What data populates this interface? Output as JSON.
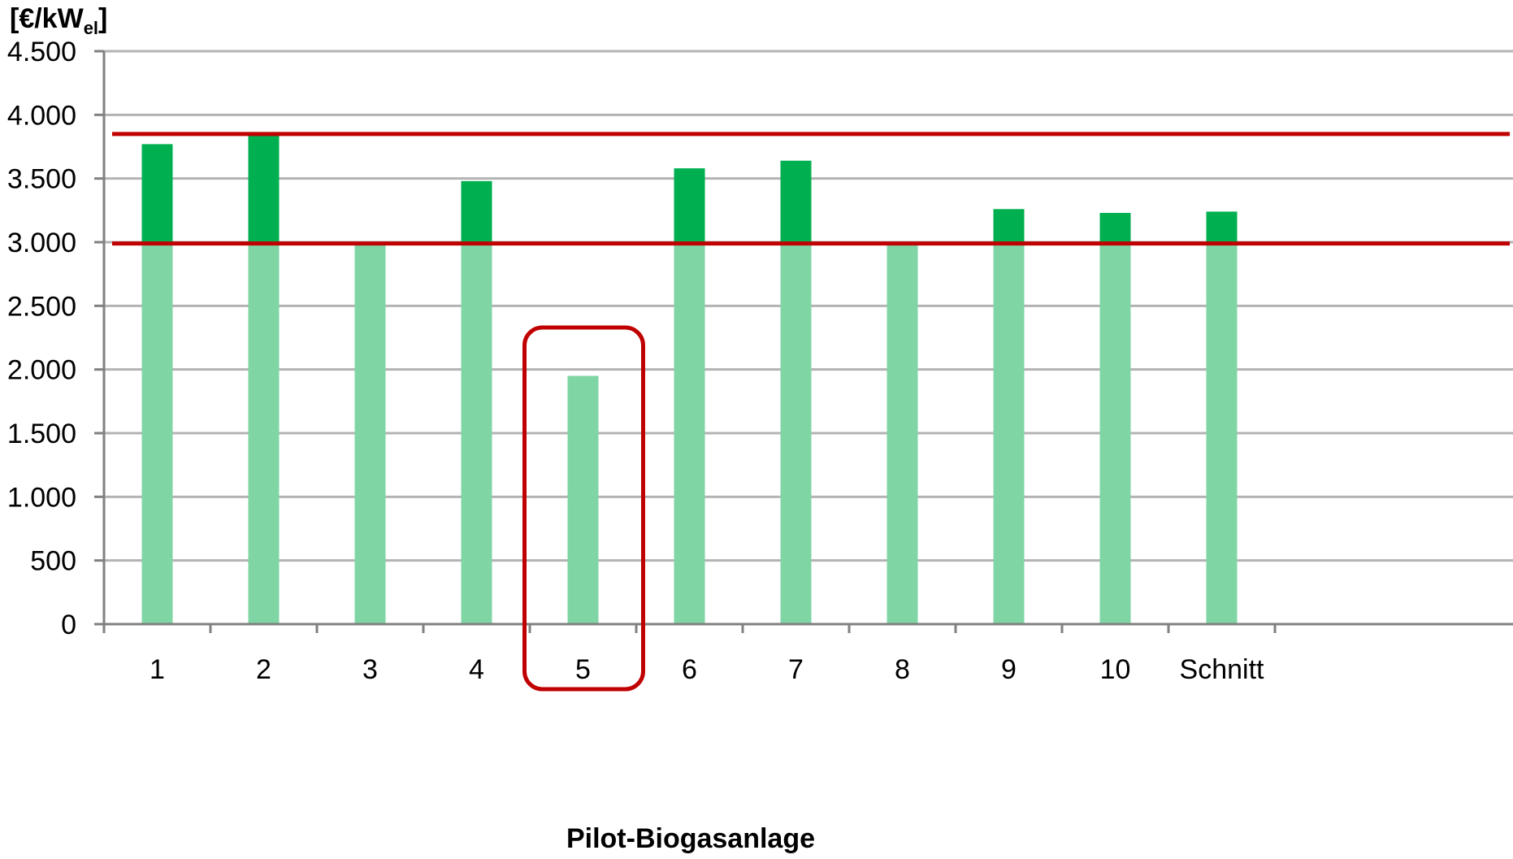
{
  "chart_data": {
    "type": "bar",
    "categories": [
      "1",
      "2",
      "3",
      "4",
      "5",
      "6",
      "7",
      "8",
      "9",
      "10",
      "Schnitt"
    ],
    "series": [
      {
        "values": [
          3000,
          3000,
          3000,
          3000,
          1950,
          3000,
          3000,
          3000,
          3000,
          3000,
          3000
        ]
      },
      {
        "values": [
          770,
          840,
          0,
          480,
          0,
          580,
          640,
          0,
          260,
          230,
          240
        ]
      }
    ],
    "stacked": true,
    "colors": [
      "#7fd6a4",
      "#00b050"
    ],
    "ylabel": "[€/kW",
    "ylabel_subscript": "el",
    "ylabel_suffix": "]",
    "xlabel": "Pilot-Biogasanlage",
    "ylim": [
      0,
      4500
    ],
    "yticks": [
      0,
      500,
      1000,
      1500,
      2000,
      2500,
      3000,
      3500,
      4000,
      4500
    ],
    "ytick_labels": [
      "0",
      "500",
      "1.000",
      "1.500",
      "2.000",
      "2.500",
      "3.000",
      "3.500",
      "4.000",
      "4.500"
    ],
    "grid": true,
    "reference_lines": [
      {
        "value": 3850,
        "color": "#c00000"
      },
      {
        "value": 2990,
        "color": "#c00000"
      }
    ],
    "highlight": {
      "category": "5",
      "color": "#c00000"
    }
  }
}
